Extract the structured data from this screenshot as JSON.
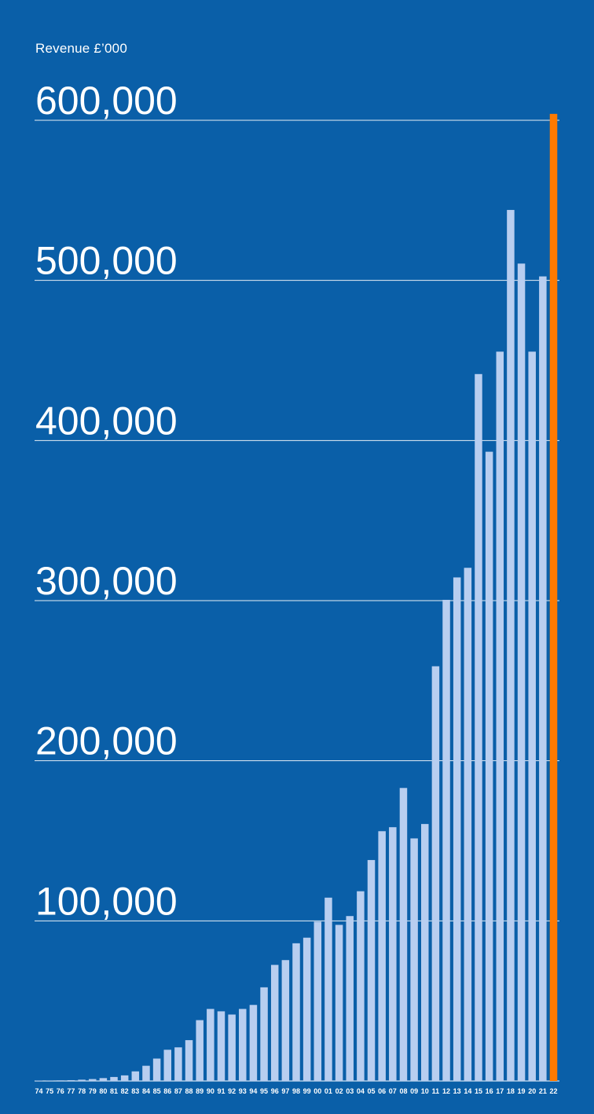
{
  "chart_data": {
    "type": "bar",
    "title": "",
    "xlabel": "",
    "ylabel": "Revenue £’000",
    "ylim": [
      0,
      600000
    ],
    "yticks": [
      100000,
      200000,
      300000,
      400000,
      500000,
      600000
    ],
    "ytick_labels": [
      "100,000",
      "200,000",
      "300,000",
      "400,000",
      "500,000",
      "600,000"
    ],
    "grid": true,
    "categories": [
      "74",
      "75",
      "76",
      "77",
      "78",
      "79",
      "80",
      "81",
      "82",
      "83",
      "84",
      "85",
      "86",
      "87",
      "88",
      "89",
      "90",
      "91",
      "92",
      "93",
      "94",
      "95",
      "96",
      "97",
      "98",
      "99",
      "00",
      "01",
      "02",
      "03",
      "04",
      "05",
      "06",
      "07",
      "08",
      "09",
      "10",
      "11",
      "12",
      "13",
      "14",
      "15",
      "16",
      "17",
      "18",
      "19",
      "20",
      "21",
      "22"
    ],
    "values": [
      200,
      300,
      400,
      500,
      800,
      1200,
      1800,
      2500,
      3500,
      6000,
      9500,
      14000,
      19500,
      21000,
      25500,
      38000,
      45000,
      43500,
      41500,
      45000,
      47500,
      58500,
      72500,
      75500,
      86000,
      89500,
      99500,
      114500,
      97500,
      103000,
      118500,
      138000,
      156000,
      158500,
      183000,
      151500,
      160500,
      259000,
      300500,
      314500,
      320500,
      441500,
      393000,
      455500,
      544000,
      510500,
      455500,
      502500,
      604000
    ],
    "colors": {
      "background": "#0a5fa8",
      "bar": "#b8cef0",
      "highlight_bar": "#ff7a00",
      "grid": "#ffffff",
      "text": "#ffffff"
    },
    "highlight_category": "22"
  }
}
